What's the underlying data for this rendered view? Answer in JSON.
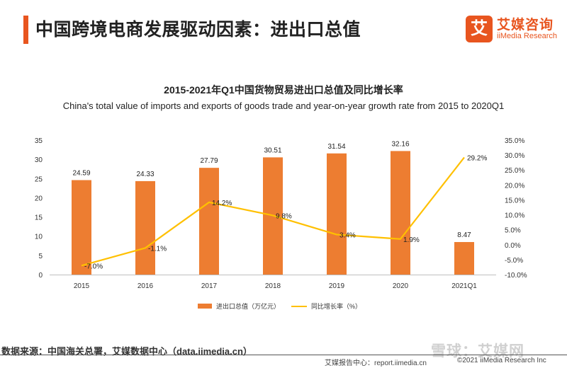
{
  "header": {
    "title": "中国跨境电商发展驱动因素：进出口总值",
    "logo_glyph": "艾",
    "logo_cn": "艾媒咨询",
    "logo_en": "iiMedia Research"
  },
  "chart_data": {
    "type": "bar",
    "title": "2015-2021年Q1中国货物贸易进出口总值及同比增长率",
    "subtitle": "China's total value of imports and exports of goods trade and year-on-year growth rate from 2015 to 2020Q1",
    "categories": [
      "2015",
      "2016",
      "2017",
      "2018",
      "2019",
      "2020",
      "2021Q1"
    ],
    "series": [
      {
        "name": "进出口总值（万亿元）",
        "type": "bar",
        "axis": "left",
        "color": "#ed7d31",
        "values": [
          24.59,
          24.33,
          27.79,
          30.51,
          31.54,
          32.16,
          8.47
        ],
        "labels": [
          "24.59",
          "24.33",
          "27.79",
          "30.51",
          "31.54",
          "32.16",
          "8.47"
        ]
      },
      {
        "name": "同比增长率（%）",
        "type": "line",
        "axis": "right",
        "color": "#ffc000",
        "values": [
          -7.0,
          -1.1,
          14.2,
          9.8,
          3.4,
          1.9,
          29.2
        ],
        "labels": [
          "-7.0%",
          "-1.1%",
          "14.2%",
          "9.8%",
          "3.4%",
          "1.9%",
          "29.2%"
        ]
      }
    ],
    "y_left": {
      "min": 0,
      "max": 35,
      "ticks": [
        "0",
        "5",
        "10",
        "15",
        "20",
        "25",
        "30",
        "35"
      ]
    },
    "y_right": {
      "min": -10,
      "max": 35,
      "ticks": [
        "-10.0%",
        "-5.0%",
        "0.0%",
        "5.0%",
        "10.0%",
        "15.0%",
        "20.0%",
        "25.0%",
        "30.0%",
        "35.0%"
      ]
    },
    "grid": false,
    "legend_position": "bottom"
  },
  "footer": {
    "source": "数据来源：中国海关总署，艾媒数据中心（data.iimedia.cn）",
    "watermark": "雪球：艾媒网",
    "report_site": "艾媒报告中心：report.iimedia.cn",
    "copyright": "©2021  iiMedia Research  Inc"
  }
}
